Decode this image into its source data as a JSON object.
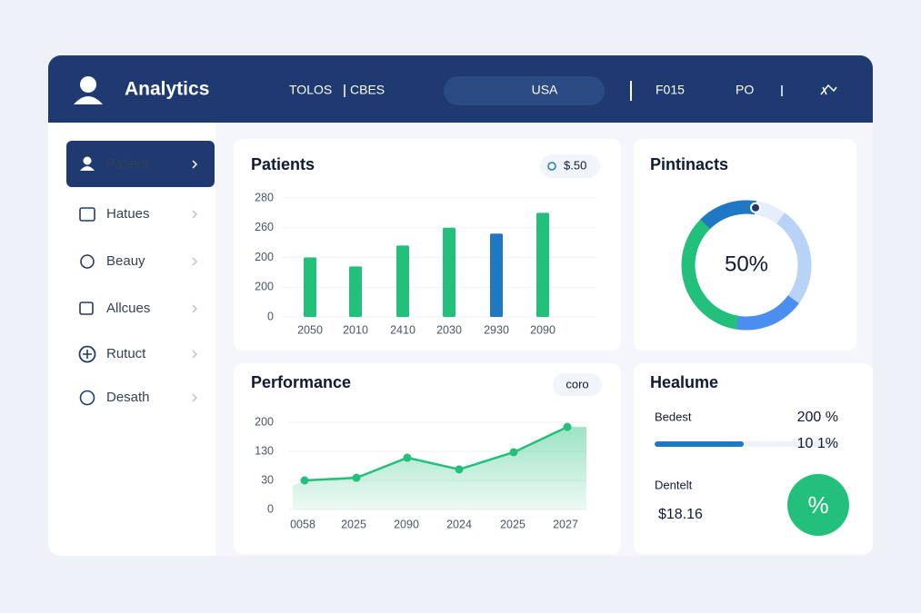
{
  "header": {
    "title": "Analytics",
    "nav": [
      "TOLOS",
      "CBES"
    ],
    "search": "USA",
    "items": [
      "F015",
      "PO"
    ]
  },
  "sidebar": {
    "items": [
      "Patient",
      "Hatues",
      "Beauy",
      "Allcues",
      "Rutuct",
      "Desath"
    ]
  },
  "patients_chart": {
    "type": "bar",
    "title": "Patients",
    "badge": "$.50",
    "categories": [
      "2050",
      "2010",
      "2410",
      "2030",
      "2930",
      "2090"
    ],
    "values": [
      2.0,
      1.7,
      2.4,
      3.0,
      2.8,
      3.5
    ],
    "colors": [
      "#22c07a",
      "#22c07a",
      "#22c07a",
      "#22c07a",
      "#1f78c1",
      "#22c07a"
    ],
    "ylim": [
      0,
      4
    ],
    "yticks": [
      {
        "value": 4,
        "label": "280"
      },
      {
        "value": 3,
        "label": "260"
      },
      {
        "value": 2,
        "label": "200"
      },
      {
        "value": 1,
        "label": "200"
      },
      {
        "value": 0,
        "label": "0"
      }
    ],
    "grid": true
  },
  "performance_chart": {
    "type": "line",
    "title": "Performance",
    "badge": "coro",
    "categories": [
      "0058",
      "2025",
      "2090",
      "2024",
      "2025",
      "2027"
    ],
    "values": [
      1.0,
      1.09,
      1.78,
      1.38,
      1.97,
      2.84
    ],
    "color": "#22c07a",
    "ylim": [
      0,
      3
    ],
    "yticks": [
      {
        "value": 3,
        "label": "200"
      },
      {
        "value": 2,
        "label": "130"
      },
      {
        "value": 1,
        "label": "30"
      },
      {
        "value": 0,
        "label": "0"
      }
    ]
  },
  "donut": {
    "type": "donut",
    "title": "Pintinacts",
    "value": 50,
    "value_label": "50%"
  },
  "health": {
    "title": "Healume",
    "rows": [
      {
        "label": "Bedest",
        "value": "200 %",
        "sub": "10 1%"
      },
      {
        "label": "Dentelt",
        "value": "$18.16"
      }
    ],
    "button": "%"
  }
}
